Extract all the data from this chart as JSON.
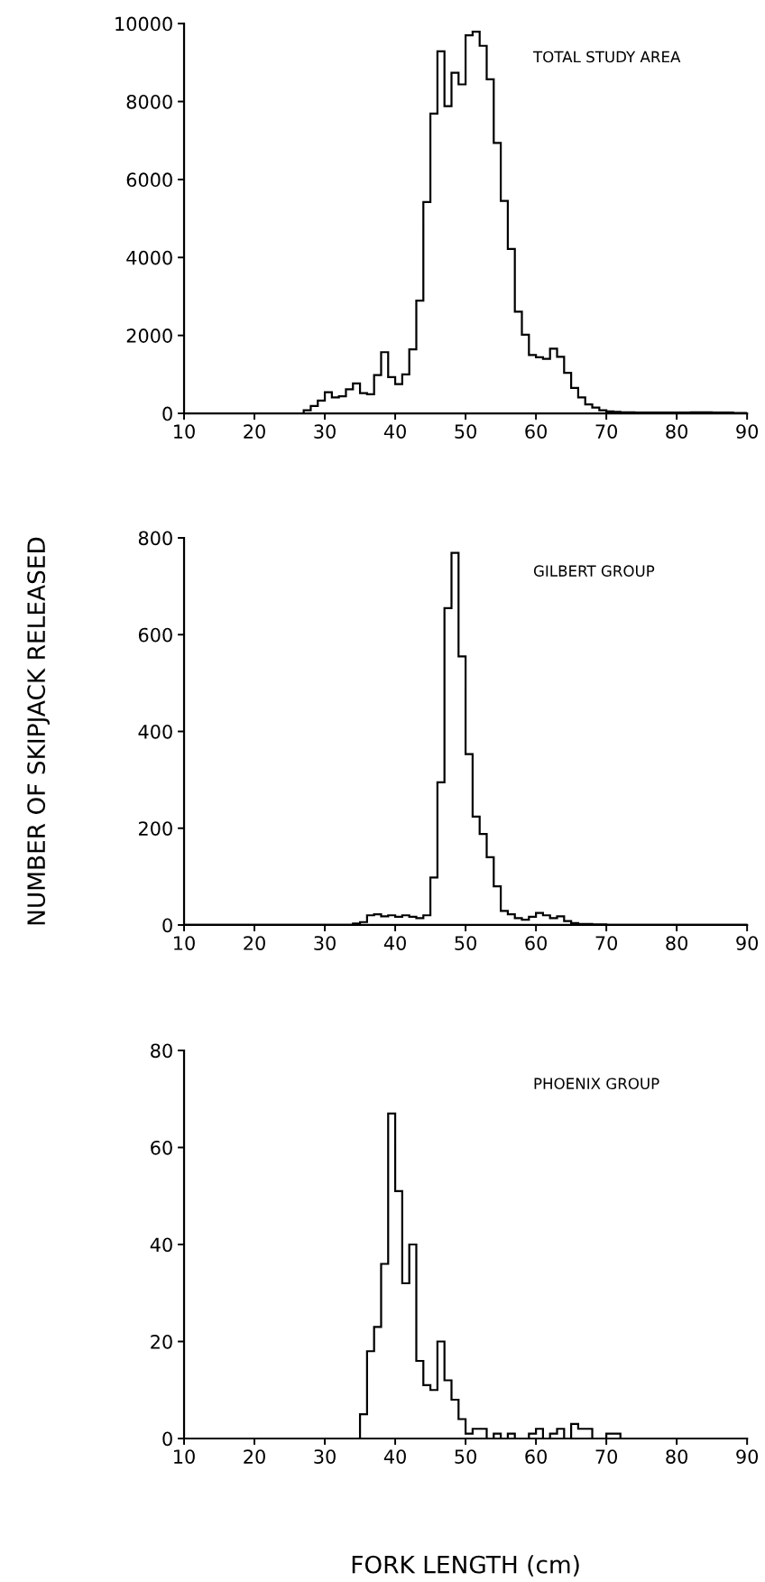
{
  "chart_data": [
    {
      "type": "histogram",
      "title": "TOTAL STUDY AREA",
      "color": "#000000",
      "bins": [
        10,
        11,
        12,
        13,
        14,
        15,
        16,
        17,
        18,
        19,
        20,
        21,
        22,
        23,
        24,
        25,
        26,
        27,
        28,
        29,
        30,
        31,
        32,
        33,
        34,
        35,
        36,
        37,
        38,
        39,
        40,
        41,
        42,
        43,
        44,
        45,
        46,
        47,
        48,
        49,
        50,
        51,
        52,
        53,
        54,
        55,
        56,
        57,
        58,
        59,
        60,
        61,
        62,
        63,
        64,
        65,
        66,
        67,
        68,
        69,
        70,
        71,
        72,
        73,
        74,
        75,
        76,
        77,
        78,
        79,
        80,
        81,
        82,
        83,
        84,
        85,
        86,
        87,
        88,
        89,
        90
      ],
      "values": [
        0,
        0,
        0,
        0,
        0,
        0,
        0,
        0,
        0,
        0,
        0,
        0,
        0,
        0,
        0,
        0,
        0,
        80,
        190,
        330,
        540,
        410,
        440,
        620,
        770,
        520,
        490,
        980,
        1570,
        930,
        750,
        1000,
        1640,
        2890,
        5420,
        7690,
        9290,
        7880,
        8740,
        8440,
        9700,
        9790,
        9430,
        8570,
        6940,
        5450,
        4220,
        2610,
        2020,
        1500,
        1440,
        1400,
        1660,
        1450,
        1040,
        650,
        410,
        230,
        150,
        80,
        50,
        40,
        30,
        30,
        20,
        20,
        20,
        20,
        20,
        20,
        20,
        20,
        30,
        30,
        30,
        20,
        20,
        20,
        10,
        10
      ],
      "xlim": [
        10,
        90
      ],
      "xticks": [
        10,
        20,
        30,
        40,
        50,
        60,
        70,
        80,
        90
      ],
      "ylim": [
        0,
        10000
      ],
      "yticks": [
        0,
        2000,
        4000,
        6000,
        8000,
        10000
      ],
      "grid": false
    },
    {
      "type": "histogram",
      "title": "GILBERT GROUP",
      "color": "#000000",
      "ylabel": "NUMBER OF SKIPJACK RELEASED",
      "bins": [
        10,
        11,
        12,
        13,
        14,
        15,
        16,
        17,
        18,
        19,
        20,
        21,
        22,
        23,
        24,
        25,
        26,
        27,
        28,
        29,
        30,
        31,
        32,
        33,
        34,
        35,
        36,
        37,
        38,
        39,
        40,
        41,
        42,
        43,
        44,
        45,
        46,
        47,
        48,
        49,
        50,
        51,
        52,
        53,
        54,
        55,
        56,
        57,
        58,
        59,
        60,
        61,
        62,
        63,
        64,
        65,
        66,
        67,
        68,
        69,
        70,
        71,
        72,
        73,
        74,
        75,
        76,
        77,
        78,
        79,
        80,
        81,
        82,
        83,
        84,
        85,
        86,
        87,
        88,
        89,
        90
      ],
      "values": [
        0,
        0,
        0,
        0,
        0,
        0,
        0,
        0,
        0,
        0,
        0,
        0,
        0,
        0,
        0,
        0,
        0,
        0,
        0,
        0,
        0,
        0,
        0,
        0,
        3,
        6,
        20,
        22,
        18,
        20,
        17,
        20,
        17,
        14,
        20,
        98,
        295,
        655,
        769,
        555,
        353,
        224,
        188,
        140,
        80,
        29,
        22,
        14,
        11,
        17,
        25,
        20,
        14,
        18,
        8,
        4,
        2,
        2,
        1,
        1,
        0,
        0,
        0,
        0,
        0,
        0,
        0,
        0,
        0,
        0,
        0,
        0,
        0,
        0,
        0,
        0,
        0,
        0,
        0,
        0
      ],
      "xlim": [
        10,
        90
      ],
      "xticks": [
        10,
        20,
        30,
        40,
        50,
        60,
        70,
        80,
        90
      ],
      "ylim": [
        0,
        800
      ],
      "yticks": [
        0,
        200,
        400,
        600,
        800
      ],
      "grid": false
    },
    {
      "type": "histogram",
      "title": "PHOENIX GROUP",
      "color": "#000000",
      "xlabel": "FORK LENGTH (cm)",
      "bins": [
        10,
        11,
        12,
        13,
        14,
        15,
        16,
        17,
        18,
        19,
        20,
        21,
        22,
        23,
        24,
        25,
        26,
        27,
        28,
        29,
        30,
        31,
        32,
        33,
        34,
        35,
        36,
        37,
        38,
        39,
        40,
        41,
        42,
        43,
        44,
        45,
        46,
        47,
        48,
        49,
        50,
        51,
        52,
        53,
        54,
        55,
        56,
        57,
        58,
        59,
        60,
        61,
        62,
        63,
        64,
        65,
        66,
        67,
        68,
        69,
        70,
        71,
        72,
        73,
        74,
        75,
        76,
        77,
        78,
        79,
        80,
        81,
        82,
        83,
        84,
        85,
        86,
        87,
        88,
        89,
        90
      ],
      "values": [
        0,
        0,
        0,
        0,
        0,
        0,
        0,
        0,
        0,
        0,
        0,
        0,
        0,
        0,
        0,
        0,
        0,
        0,
        0,
        0,
        0,
        0,
        0,
        0,
        0,
        5,
        18,
        23,
        36,
        67,
        51,
        32,
        40,
        16,
        11,
        10,
        20,
        12,
        8,
        4,
        1,
        2,
        2,
        0,
        1,
        0,
        1,
        0,
        0,
        1,
        2,
        0,
        1,
        2,
        0,
        3,
        2,
        2,
        0,
        0,
        1,
        1,
        0,
        0,
        0,
        0,
        0,
        0,
        0,
        0,
        0,
        0,
        0,
        0,
        0,
        0,
        0,
        0,
        0,
        0
      ],
      "xlim": [
        10,
        90
      ],
      "xticks": [
        10,
        20,
        30,
        40,
        50,
        60,
        70,
        80,
        90
      ],
      "ylim": [
        0,
        80
      ],
      "yticks": [
        0,
        20,
        40,
        60,
        80
      ],
      "grid": false
    }
  ]
}
